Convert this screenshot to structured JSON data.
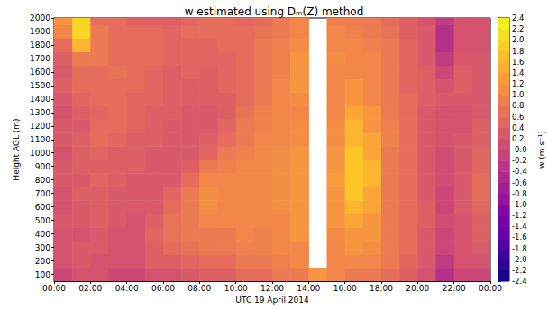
{
  "chart_data": {
    "type": "heatmap",
    "title": "w estimated using Dₘ(Z) method",
    "x_label": "UTC 19 April 2014",
    "y_label": "Height AGL (m)",
    "x": [
      0.5,
      1.5,
      2.5,
      3.5,
      4.5,
      5.5,
      6.5,
      7.5,
      8.5,
      9.5,
      10.5,
      11.5,
      12.5,
      13.5,
      14.5,
      15.5,
      16.5,
      17.5,
      18.5,
      19.5,
      20.5,
      21.5,
      22.5,
      23.5
    ],
    "y": [
      100,
      200,
      300,
      400,
      500,
      600,
      700,
      800,
      900,
      1000,
      1100,
      1200,
      1300,
      1400,
      1500,
      1600,
      1700,
      1800,
      1900,
      2000
    ],
    "values": [
      [
        0.0,
        0.2,
        0.2,
        0.2,
        0.3,
        0.2,
        0.2,
        0.3,
        0.3,
        0.2,
        0.3,
        0.3,
        0.2,
        0.3,
        0.4,
        0.3,
        0.4,
        0.6,
        1.0,
        1.2
      ],
      [
        0.2,
        0.3,
        0.3,
        0.2,
        0.3,
        0.3,
        0.4,
        0.3,
        0.4,
        0.4,
        0.4,
        0.3,
        0.4,
        0.5,
        0.6,
        0.6,
        0.8,
        1.6,
        2.0,
        2.0
      ],
      [
        0.2,
        0.2,
        0.3,
        0.3,
        0.4,
        0.4,
        0.4,
        0.5,
        0.4,
        0.5,
        0.6,
        0.6,
        0.5,
        0.6,
        0.6,
        0.6,
        0.8,
        0.8,
        0.8,
        0.6
      ],
      [
        0.0,
        0.2,
        0.2,
        0.2,
        0.3,
        0.3,
        0.3,
        0.4,
        0.4,
        0.4,
        0.5,
        0.6,
        0.6,
        0.6,
        0.6,
        0.7,
        0.6,
        0.6,
        0.6,
        0.6
      ],
      [
        0.0,
        0.2,
        0.2,
        0.2,
        0.2,
        0.3,
        0.3,
        0.3,
        0.4,
        0.4,
        0.4,
        0.5,
        0.5,
        0.5,
        0.6,
        0.6,
        0.6,
        0.6,
        0.6,
        0.4
      ],
      [
        0.2,
        0.4,
        0.4,
        0.5,
        0.4,
        0.3,
        0.3,
        0.3,
        0.3,
        0.3,
        0.4,
        0.4,
        0.4,
        0.5,
        0.5,
        0.5,
        0.6,
        0.6,
        0.6,
        0.4
      ],
      [
        0.2,
        0.4,
        0.6,
        0.7,
        0.7,
        0.6,
        0.5,
        0.3,
        0.3,
        0.3,
        0.3,
        0.3,
        0.4,
        0.4,
        0.4,
        0.4,
        0.5,
        0.5,
        0.5,
        0.4
      ],
      [
        0.3,
        0.5,
        0.7,
        0.8,
        0.8,
        0.8,
        0.8,
        0.6,
        0.4,
        0.3,
        0.3,
        0.3,
        0.3,
        0.4,
        0.4,
        0.5,
        0.5,
        0.5,
        0.6,
        0.5
      ],
      [
        0.4,
        0.6,
        0.8,
        0.8,
        1.0,
        1.1,
        1.1,
        1.0,
        0.8,
        0.5,
        0.4,
        0.3,
        0.3,
        0.4,
        0.4,
        0.4,
        0.5,
        0.5,
        0.6,
        0.6
      ],
      [
        0.4,
        0.6,
        0.8,
        0.8,
        1.0,
        1.0,
        1.0,
        1.0,
        0.9,
        0.8,
        0.6,
        0.5,
        0.4,
        0.4,
        0.5,
        0.5,
        0.5,
        0.6,
        0.6,
        0.6
      ],
      [
        0.6,
        0.8,
        0.9,
        1.0,
        1.0,
        1.0,
        1.0,
        1.0,
        1.0,
        0.9,
        0.8,
        0.8,
        0.7,
        0.6,
        0.6,
        0.6,
        0.6,
        0.6,
        0.6,
        0.5
      ],
      [
        0.6,
        0.8,
        0.9,
        0.9,
        1.0,
        1.0,
        1.0,
        1.0,
        1.0,
        1.0,
        1.0,
        0.9,
        0.9,
        0.8,
        0.8,
        0.8,
        0.8,
        0.8,
        0.7,
        0.6
      ],
      [
        0.8,
        0.9,
        1.0,
        1.0,
        1.0,
        1.1,
        1.1,
        1.1,
        1.1,
        1.1,
        1.0,
        1.0,
        1.0,
        1.0,
        1.0,
        0.9,
        0.9,
        0.9,
        0.8,
        0.8
      ],
      [
        0.8,
        1.0,
        1.0,
        1.2,
        1.2,
        1.2,
        1.2,
        1.2,
        1.2,
        1.2,
        1.1,
        1.1,
        1.0,
        1.1,
        1.2,
        1.2,
        1.2,
        1.1,
        1.0,
        1.0
      ],
      [
        1.2,
        null,
        null,
        null,
        null,
        null,
        null,
        null,
        null,
        null,
        null,
        null,
        null,
        null,
        null,
        null,
        null,
        null,
        null,
        null
      ],
      [
        1.0,
        1.0,
        1.0,
        1.1,
        1.2,
        1.2,
        1.2,
        1.3,
        1.2,
        1.2,
        1.1,
        1.1,
        1.0,
        1.0,
        1.0,
        1.0,
        1.1,
        1.0,
        1.0,
        0.9
      ],
      [
        0.8,
        1.0,
        1.2,
        1.2,
        1.4,
        1.6,
        1.8,
        1.8,
        1.8,
        1.8,
        1.6,
        1.6,
        1.4,
        1.2,
        1.2,
        1.0,
        1.0,
        1.0,
        0.9,
        0.8
      ],
      [
        0.8,
        1.0,
        1.1,
        1.2,
        1.2,
        1.4,
        1.4,
        1.6,
        1.6,
        1.4,
        1.4,
        1.2,
        1.2,
        1.0,
        1.0,
        1.0,
        1.0,
        0.9,
        0.8,
        0.8
      ],
      [
        0.6,
        0.8,
        0.8,
        0.8,
        0.8,
        0.8,
        0.8,
        0.8,
        0.8,
        0.8,
        0.9,
        0.9,
        0.8,
        0.8,
        0.8,
        0.8,
        0.8,
        0.8,
        0.7,
        0.6
      ],
      [
        0.4,
        0.5,
        0.6,
        0.6,
        0.6,
        0.6,
        0.6,
        0.6,
        0.6,
        0.6,
        0.6,
        0.6,
        0.6,
        0.6,
        0.5,
        0.5,
        0.5,
        0.5,
        0.4,
        0.4
      ],
      [
        0.2,
        0.3,
        0.3,
        0.3,
        0.4,
        0.4,
        0.3,
        0.3,
        0.3,
        0.3,
        0.3,
        0.3,
        0.3,
        0.4,
        0.4,
        0.4,
        0.3,
        0.3,
        0.3,
        0.2
      ],
      [
        -0.4,
        -0.2,
        0.0,
        0.0,
        0.1,
        0.0,
        0.0,
        0.1,
        0.1,
        0.1,
        0.2,
        0.2,
        0.2,
        0.3,
        0.2,
        0.0,
        -0.2,
        -0.4,
        -0.4,
        -0.2
      ],
      [
        0.0,
        0.2,
        0.2,
        0.2,
        0.2,
        0.3,
        0.3,
        0.3,
        0.3,
        0.3,
        0.3,
        0.2,
        0.2,
        0.3,
        0.4,
        0.4,
        0.3,
        0.2,
        0.2,
        0.2
      ],
      [
        0.0,
        0.2,
        0.3,
        0.4,
        0.4,
        0.5,
        0.6,
        0.6,
        0.5,
        0.5,
        0.4,
        0.4,
        0.3,
        0.3,
        0.3,
        0.3,
        0.3,
        0.2,
        0.2,
        0.2
      ]
    ],
    "xlim": [
      0,
      24
    ],
    "xticks": [
      {
        "value": 0,
        "label": "00:00"
      },
      {
        "value": 2,
        "label": "02:00"
      },
      {
        "value": 4,
        "label": "04:00"
      },
      {
        "value": 6,
        "label": "06:00"
      },
      {
        "value": 8,
        "label": "08:00"
      },
      {
        "value": 10,
        "label": "10:00"
      },
      {
        "value": 12,
        "label": "12:00"
      },
      {
        "value": 14,
        "label": "14:00"
      },
      {
        "value": 16,
        "label": "16:00"
      },
      {
        "value": 18,
        "label": "18:00"
      },
      {
        "value": 20,
        "label": "20:00"
      },
      {
        "value": 22,
        "label": "22:00"
      },
      {
        "value": 24,
        "label": "00:00"
      }
    ],
    "ylim": [
      50,
      2000
    ],
    "yticks": [
      100,
      200,
      300,
      400,
      500,
      600,
      700,
      800,
      900,
      1000,
      1100,
      1200,
      1300,
      1400,
      1500,
      1600,
      1700,
      1800,
      1900,
      2000
    ],
    "colorbar": {
      "label": "w (m s⁻¹)",
      "range": [
        -2.4,
        2.4
      ],
      "ticks": [
        -2.4,
        -2.2,
        {
          "value": -2,
          "label": "-2.0"
        },
        -1.8,
        -1.6,
        -1.4,
        -1.2,
        {
          "value": -1,
          "label": "-1.0"
        },
        -0.8,
        -0.6,
        -0.4,
        -0.2,
        {
          "value": 0,
          "label": "-0.0"
        },
        0.2,
        0.4,
        0.6,
        0.8,
        {
          "value": 1,
          "label": "1.0"
        },
        1.2,
        1.4,
        1.6,
        1.8,
        {
          "value": 2,
          "label": "2.0"
        },
        2.2,
        2.4
      ]
    }
  }
}
